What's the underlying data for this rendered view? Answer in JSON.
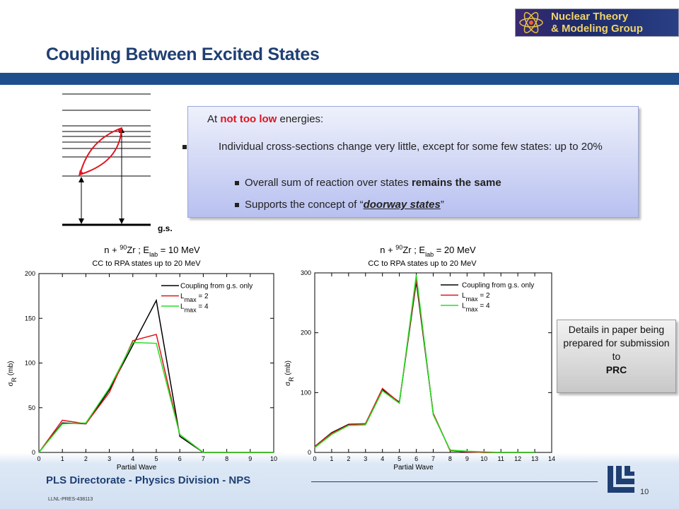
{
  "header": {
    "title": "Coupling Between Excited States",
    "logo": [
      "Nuclear Theory",
      "& Modeling Group"
    ]
  },
  "box": {
    "intro": [
      "At ",
      "not too low",
      " energies:"
    ],
    "bullets": [
      {
        "text": "Individual cross-sections change very little, except for some few states: up to 20%"
      },
      {
        "text": "Overall sum of reaction over states ",
        "bold": "remains the same"
      },
      {
        "text": "Supports the concept of “",
        "em": "doorway states",
        "after": "”"
      }
    ]
  },
  "diagram": {
    "ground_label": "g.s."
  },
  "side_note": {
    "text": "Details in paper being prepared for submission to",
    "bold": "PRC"
  },
  "footer": {
    "text": "PLS Directorate - Physics Division -  NPS",
    "page": "10",
    "code": "LLNL-PRES-438113"
  },
  "chart_data": [
    {
      "type": "line",
      "title": [
        "n + ",
        "90",
        "Zr ; E",
        "lab",
        " = 10 MeV"
      ],
      "subtitle": "CC to RPA states up to 20 MeV",
      "x_label": "Partial Wave",
      "y_label": [
        "σ",
        "R",
        " (mb)"
      ],
      "x": [
        0,
        1,
        2,
        3,
        4,
        5,
        6,
        7,
        8,
        9,
        10
      ],
      "xlim": [
        0,
        10
      ],
      "xticks": [
        0,
        1,
        2,
        3,
        4,
        5,
        6,
        7,
        8,
        9,
        10
      ],
      "ylim": [
        0,
        200
      ],
      "yticks": [
        0,
        50,
        100,
        150,
        200
      ],
      "legend": "upper right",
      "series": [
        {
          "name": [
            "Coupling from g.s. only"
          ],
          "color": "#000000",
          "values": [
            0,
            33,
            32,
            70,
            120,
            170,
            18,
            0,
            0,
            0,
            0
          ]
        },
        {
          "name": [
            "L",
            "max",
            " = 2"
          ],
          "color": "#e0141e",
          "values": [
            0,
            36,
            32,
            67,
            125,
            132,
            20,
            0,
            0,
            0,
            0
          ]
        },
        {
          "name": [
            "L",
            "max",
            " = 4"
          ],
          "color": "#22e022",
          "values": [
            0,
            32,
            33,
            72,
            123,
            122,
            20,
            0,
            0,
            0,
            0
          ]
        }
      ]
    },
    {
      "type": "line",
      "title": [
        "n + ",
        "90",
        "Zr ; E",
        "lab",
        " = 20 MeV"
      ],
      "subtitle": "CC to RPA states up to 20 MeV",
      "x_label": "Partial Wave",
      "y_label": [
        "σ",
        "R",
        " (mb)"
      ],
      "x": [
        0,
        1,
        2,
        3,
        4,
        5,
        6,
        7,
        8,
        9,
        10,
        11,
        12,
        13
      ],
      "xlim": [
        0,
        14
      ],
      "xticks": [
        0,
        1,
        2,
        3,
        4,
        5,
        6,
        7,
        8,
        9,
        10,
        11,
        12,
        13,
        14
      ],
      "ylim": [
        0,
        300
      ],
      "yticks": [
        0,
        100,
        200,
        300
      ],
      "legend": "upper right",
      "series": [
        {
          "name": [
            "Coupling from g.s. only"
          ],
          "color": "#000000",
          "values": [
            10,
            33,
            47,
            48,
            105,
            84,
            285,
            65,
            3,
            1,
            0,
            0,
            0,
            0
          ]
        },
        {
          "name": [
            "L",
            "max",
            " = 2"
          ],
          "color": "#e0141e",
          "values": [
            10,
            32,
            46,
            48,
            107,
            83,
            290,
            65,
            3,
            1,
            0,
            0,
            0,
            0
          ]
        },
        {
          "name": [
            "L",
            "max",
            " = 4"
          ],
          "color": "#22e022",
          "values": [
            8,
            30,
            45,
            46,
            103,
            82,
            297,
            63,
            4,
            2,
            1,
            0,
            0,
            0
          ]
        }
      ]
    }
  ]
}
